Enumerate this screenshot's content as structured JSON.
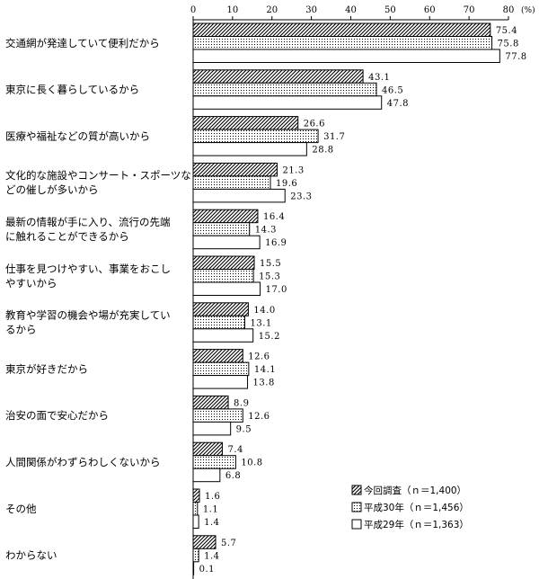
{
  "chart_data": {
    "type": "bar",
    "orientation": "horizontal",
    "unit": "(%)",
    "xlim": [
      0,
      80
    ],
    "ticks": [
      "0",
      "10",
      "20",
      "30",
      "40",
      "50",
      "60",
      "70",
      "80"
    ],
    "tick_values": [
      0,
      10,
      20,
      30,
      40,
      50,
      60,
      70,
      80
    ],
    "categories": [
      [
        "交通網が発達していて便利だから"
      ],
      [
        "東京に長く暮らしているから"
      ],
      [
        "医療や福祉などの質が高いから"
      ],
      [
        "文化的な施設やコンサート・スポーツな",
        "どの催しが多いから"
      ],
      [
        "最新の情報が手に入り、流行の先端",
        "に触れることができるから"
      ],
      [
        "仕事を見つけやすい、事業をおこし",
        "やすいから"
      ],
      [
        "教育や学習の機会や場が充実してい",
        "るから"
      ],
      [
        "東京が好きだから"
      ],
      [
        "治安の面で安心だから"
      ],
      [
        "人間関係がわずらわしくないから"
      ],
      [
        "その他"
      ],
      [
        "わからない"
      ]
    ],
    "series": [
      {
        "name": "今回調査（ｎ＝1,400）",
        "pattern": "hatch",
        "values": [
          75.4,
          43.1,
          26.6,
          21.3,
          16.4,
          15.5,
          14.0,
          12.6,
          8.9,
          7.4,
          1.6,
          5.7
        ]
      },
      {
        "name": "平成30年（ｎ＝1,456）",
        "pattern": "dots",
        "values": [
          75.8,
          46.5,
          31.7,
          19.6,
          14.3,
          15.3,
          13.1,
          14.1,
          12.6,
          10.8,
          1.1,
          1.4
        ]
      },
      {
        "name": "平成29年（ｎ＝1,363）",
        "pattern": "plain",
        "values": [
          77.8,
          47.8,
          28.8,
          23.3,
          16.9,
          17.0,
          15.2,
          13.8,
          9.5,
          6.8,
          1.4,
          0.1
        ]
      }
    ],
    "legend_position": "bottom-right",
    "grid": false
  }
}
